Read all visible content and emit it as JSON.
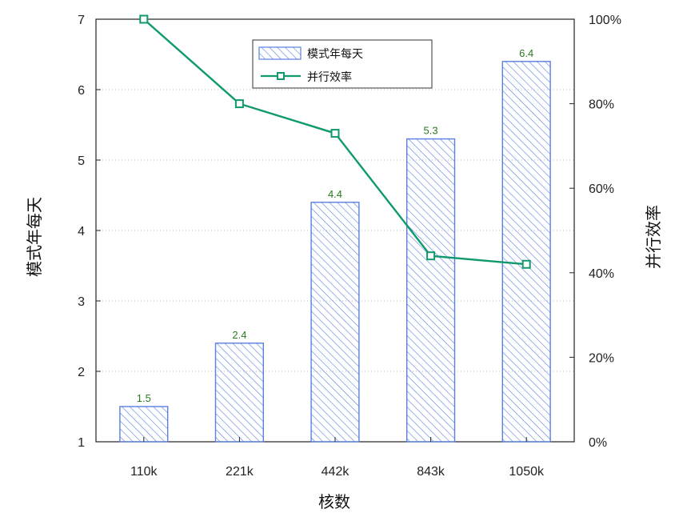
{
  "chart_data": {
    "type": "bar",
    "categories": [
      "110k",
      "221k",
      "442k",
      "843k",
      "1050k"
    ],
    "xlabel": "核数",
    "ylabel": "模式年每天",
    "y2label": "并行效率",
    "ylim": [
      1,
      7
    ],
    "y_ticks": [
      "1",
      "2",
      "3",
      "4",
      "5",
      "6",
      "7"
    ],
    "y2lim": [
      0,
      100
    ],
    "y2_ticks": [
      "0%",
      "20%",
      "40%",
      "60%",
      "80%",
      "100%"
    ],
    "grid": "horizontal-dotted",
    "legend_position": "top",
    "series": [
      {
        "name": "模式年每天",
        "kind": "bar",
        "axis": "left",
        "values": [
          1.5,
          2.4,
          4.4,
          5.3,
          6.4
        ],
        "labels": [
          "1.5",
          "2.4",
          "4.4",
          "5.3",
          "6.4"
        ],
        "color": "#5b7fe0"
      },
      {
        "name": "并行效率",
        "kind": "line",
        "axis": "right",
        "values": [
          100,
          80,
          73,
          44,
          42
        ],
        "color": "#0f9a6e"
      }
    ]
  }
}
